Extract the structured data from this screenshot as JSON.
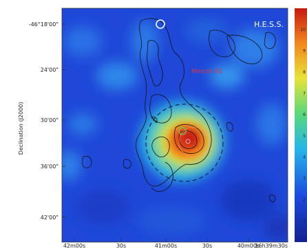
{
  "chart_data": {
    "type": "heatmap",
    "instrument_label": "H.E.S.S.",
    "source_label": "Mercer 81",
    "ylabel": "Declination (J2000)",
    "y_ticks": [
      "-46°18'00\"",
      "24'00\"",
      "30'00\"",
      "36'00\"",
      "42'00\""
    ],
    "x_ticks": [
      "42m00s",
      "30s",
      "41m00s",
      "30s",
      "40m00s",
      "16h39m30s"
    ],
    "colorbar_ticks": [
      1,
      2,
      3,
      4,
      5,
      6,
      7,
      8,
      9,
      10
    ],
    "colors": {
      "background_low": "#1c3fd6",
      "peak": "#d22a12",
      "source_label": "#e0353d",
      "contours": "#111111",
      "circles": "#ffffff"
    }
  }
}
